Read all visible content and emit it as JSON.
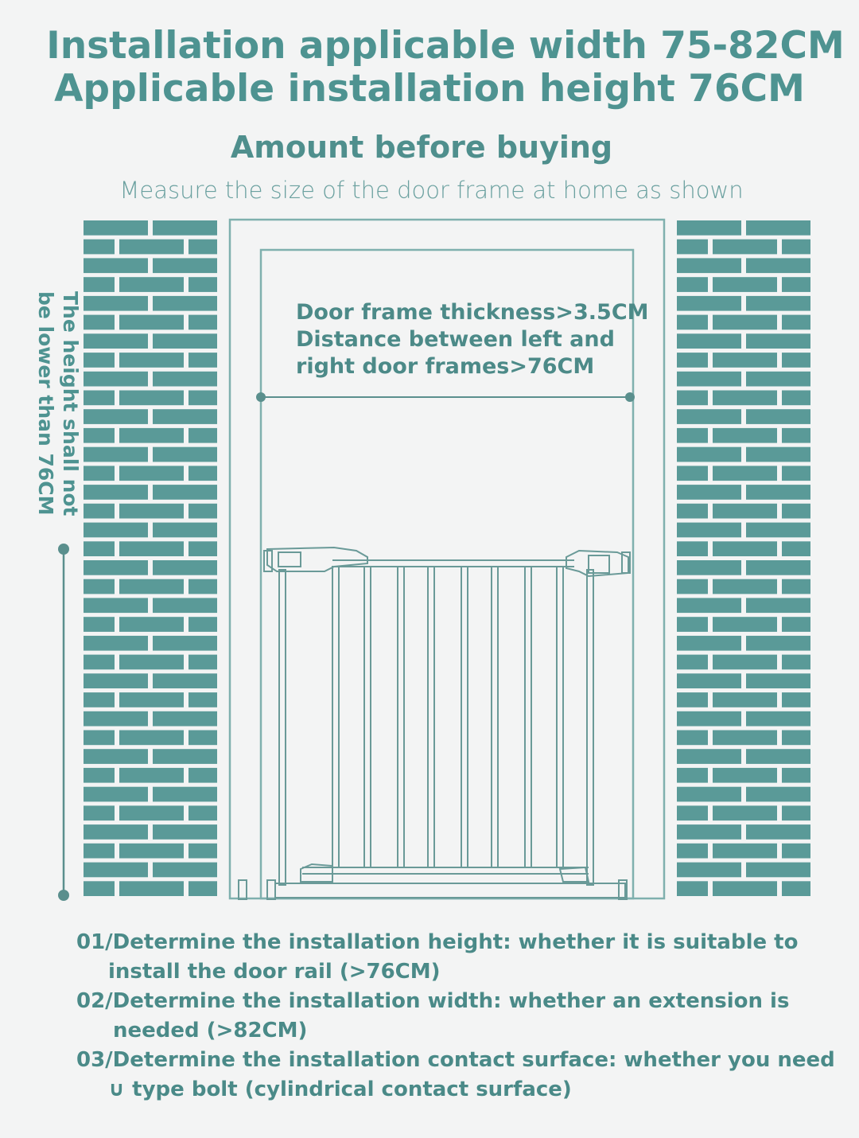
{
  "header": {
    "title_line1": "Installation applicable width 75-82CM",
    "title_line2": "Applicable installation height 76CM",
    "subtitle": "Amount before buying",
    "description": "Measure the size of the door frame at home as shown"
  },
  "diagram": {
    "frame_note": {
      "line1": "Door frame thickness>3.5CM",
      "line2": "Distance between left and",
      "line3": "right door frames>76CM"
    },
    "height_note": {
      "line1": "The height shall not",
      "line2": "be lower than 76CM"
    },
    "colors": {
      "brick": "#5a9a98",
      "frame_line": "#7fb0ae",
      "gate_line": "#6a9a98",
      "background": "#f3f4f4"
    }
  },
  "steps": [
    {
      "line1": "01/Determine the installation height: whether it is suitable to",
      "line2": "install the door rail (>76CM)"
    },
    {
      "line1": "02/Determine the installation width: whether an extension is",
      "line2": "needed (>82CM)"
    },
    {
      "line1": "03/Determine the installation contact surface: whether you need",
      "line2": "∪ type bolt (cylindrical contact surface)"
    }
  ]
}
